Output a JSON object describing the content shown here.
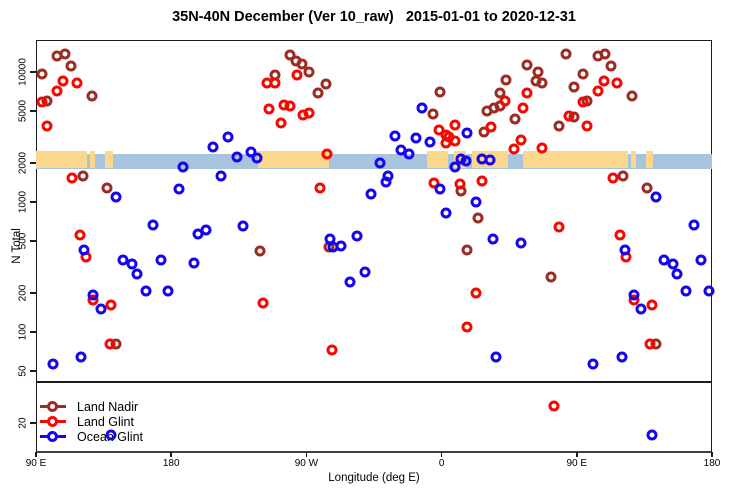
{
  "header": {
    "title": "35N-40N December (Ver 10_raw)   2015-01-01 to 2020-12-31"
  },
  "chart_data": {
    "type": "scatter",
    "title": "35N-40N December (Ver 10_raw)   2015-01-01 to 2020-12-31",
    "xlabel": "Longitude (deg E)",
    "ylabel": "N Total",
    "x_axis": {
      "span_deg": 450,
      "start": "90 E",
      "note": "axis runs 90E eastward 450 degrees; data with lon 90E-180E is drawn at both ends",
      "ticks": [
        {
          "a": 0,
          "label": "90 E"
        },
        {
          "a": 90,
          "label": "180"
        },
        {
          "a": 180,
          "label": "90 W"
        },
        {
          "a": 270,
          "label": "0"
        },
        {
          "a": 360,
          "label": "90 E"
        },
        {
          "a": 450,
          "label": "180"
        }
      ]
    },
    "y_axis": {
      "scale": "log",
      "ticks": [
        20,
        50,
        100,
        200,
        500,
        1000,
        2000,
        5000,
        10000
      ],
      "range": [
        12,
        17000
      ]
    },
    "map_strip": {
      "at_value": 2000,
      "ocean_color": "#A8C3DE",
      "land_color": "#FBD88C",
      "land_segments_axis_deg": [
        [
          0,
          34
        ],
        [
          36,
          39.5
        ],
        [
          46,
          51
        ],
        [
          147.5,
          195
        ],
        [
          260,
          274
        ],
        [
          278,
          286
        ],
        [
          290,
          314
        ],
        [
          324,
          394
        ],
        [
          396,
          399.5
        ],
        [
          406,
          411
        ]
      ]
    },
    "legend": {
      "position": "bottom-left",
      "entries": [
        "Land Nadir",
        "Land Glint",
        "Ocean Glint"
      ]
    },
    "series": [
      {
        "name": "Land Nadir",
        "color": "#9E2B23",
        "points": [
          [
            104,
            13200
          ],
          [
            109,
            13700
          ],
          [
            113,
            11200
          ],
          [
            94,
            9600
          ],
          [
            127,
            6500
          ],
          [
            97,
            6000
          ],
          [
            121,
            1585
          ],
          [
            137,
            1285
          ],
          [
            143,
            81
          ],
          [
            -121,
            420
          ],
          [
            -101,
            13500
          ],
          [
            -97,
            12200
          ],
          [
            -93,
            11500
          ],
          [
            -88,
            10000
          ],
          [
            -111,
            9500
          ],
          [
            -77,
            8100
          ],
          [
            -82,
            6900
          ],
          [
            -1,
            7000
          ],
          [
            -6,
            4750
          ],
          [
            30,
            5000
          ],
          [
            28,
            3450
          ],
          [
            -75,
            450
          ],
          [
            13,
            1215
          ],
          [
            24,
            750
          ],
          [
            17,
            428
          ],
          [
            83,
            13700
          ],
          [
            57,
            11300
          ],
          [
            64,
            10000
          ],
          [
            63,
            8500
          ],
          [
            43,
            8700
          ],
          [
            67,
            8200
          ],
          [
            39,
            6900
          ],
          [
            39,
            5500
          ],
          [
            35,
            5300
          ],
          [
            88,
            7700
          ],
          [
            49,
            4350
          ],
          [
            78,
            3850
          ],
          [
            88,
            4500
          ],
          [
            73,
            266
          ]
        ]
      },
      {
        "name": "Land Glint",
        "color": "#F50800",
        "points": [
          [
            108,
            8600
          ],
          [
            104,
            7200
          ],
          [
            94,
            5900
          ],
          [
            97,
            3850
          ],
          [
            114,
            1530
          ],
          [
            119,
            557
          ],
          [
            123,
            378
          ],
          [
            128,
            176
          ],
          [
            140,
            162
          ],
          [
            139,
            81
          ],
          [
            117,
            8300
          ],
          [
            -96,
            9500
          ],
          [
            -116,
            8200
          ],
          [
            -111,
            8200
          ],
          [
            -115,
            5200
          ],
          [
            -105,
            5600
          ],
          [
            -101,
            5500
          ],
          [
            -107,
            4050
          ],
          [
            -92,
            4670
          ],
          [
            -88,
            4830
          ],
          [
            -76,
            2340
          ],
          [
            -81,
            1280
          ],
          [
            -73,
            73
          ],
          [
            -2,
            3580
          ],
          [
            3,
            3270
          ],
          [
            5,
            3160
          ],
          [
            3,
            2840
          ],
          [
            9,
            2950
          ],
          [
            9,
            3900
          ],
          [
            -5,
            1410
          ],
          [
            12,
            1375
          ],
          [
            27,
            1440
          ],
          [
            23,
            198
          ],
          [
            -119,
            167
          ],
          [
            17,
            109
          ],
          [
            57,
            6850
          ],
          [
            54,
            5300
          ],
          [
            42,
            6000
          ],
          [
            33,
            3780
          ],
          [
            85,
            4580
          ],
          [
            53,
            3000
          ],
          [
            48,
            2560
          ],
          [
            67,
            2600
          ],
          [
            78,
            640
          ],
          [
            75,
            27
          ]
        ]
      },
      {
        "name": "Ocean Glint",
        "color": "#1505EE",
        "points": [
          [
            -142,
            3160
          ],
          [
            -152,
            2650
          ],
          [
            -136,
            2220
          ],
          [
            -127,
            2425
          ],
          [
            -123,
            2180
          ],
          [
            -172,
            1860
          ],
          [
            -147,
            1585
          ],
          [
            143,
            1090
          ],
          [
            -175,
            1260
          ],
          [
            122,
            424
          ],
          [
            148,
            358
          ],
          [
            154,
            335
          ],
          [
            157,
            279
          ],
          [
            168,
            665
          ],
          [
            173,
            360
          ],
          [
            -162,
            566
          ],
          [
            -157,
            610
          ],
          [
            -132,
            653
          ],
          [
            -165,
            340
          ],
          [
            163,
            207
          ],
          [
            178,
            206
          ],
          [
            128,
            193
          ],
          [
            133,
            149
          ],
          [
            101,
            57
          ],
          [
            120,
            64
          ],
          [
            140,
            16
          ],
          [
            -37,
            1425
          ],
          [
            -47,
            1155
          ],
          [
            -1,
            1260
          ],
          [
            23,
            1000
          ],
          [
            3,
            822
          ],
          [
            -74,
            519
          ],
          [
            -72,
            452
          ],
          [
            -67,
            459
          ],
          [
            -56,
            543
          ],
          [
            -51,
            290
          ],
          [
            -61,
            243
          ],
          [
            -13,
            5300
          ],
          [
            -31,
            3220
          ],
          [
            -17,
            3100
          ],
          [
            -8,
            2890
          ],
          [
            -27,
            2510
          ],
          [
            -22,
            2340
          ],
          [
            -41,
            2000
          ],
          [
            13,
            2140
          ],
          [
            16,
            2060
          ],
          [
            9,
            1860
          ],
          [
            27,
            2140
          ],
          [
            32,
            2100
          ],
          [
            -36,
            1585
          ],
          [
            17,
            3380
          ],
          [
            34,
            519
          ],
          [
            53,
            484
          ],
          [
            36,
            64
          ]
        ]
      }
    ]
  }
}
